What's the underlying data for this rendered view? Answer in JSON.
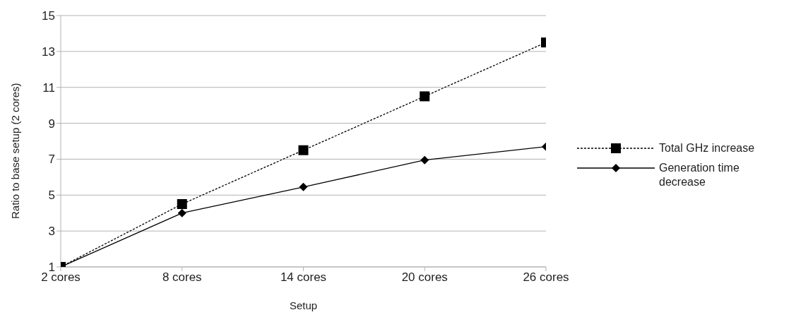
{
  "chart_data": {
    "type": "line",
    "xlabel": "Setup",
    "ylabel": "Ratio to base setup (2 cores)",
    "categories": [
      "2 cores",
      "8 cores",
      "14 cores",
      "20 cores",
      "26 cores"
    ],
    "series": [
      {
        "name": "Total GHz increase",
        "color": "#000000",
        "values": [
          1,
          4.5,
          7.5,
          10.5,
          13.5
        ],
        "marker": "square",
        "line_style": "dotted"
      },
      {
        "name": "Generation time decrease",
        "color": "#000000",
        "values": [
          1,
          4,
          5.45,
          6.95,
          7.7
        ],
        "marker": "diamond",
        "line_style": "solid"
      }
    ],
    "ylim": [
      1,
      15
    ],
    "yticks": [
      1,
      3,
      5,
      7,
      9,
      11,
      13,
      15
    ],
    "grid": "y",
    "legend": "right"
  }
}
